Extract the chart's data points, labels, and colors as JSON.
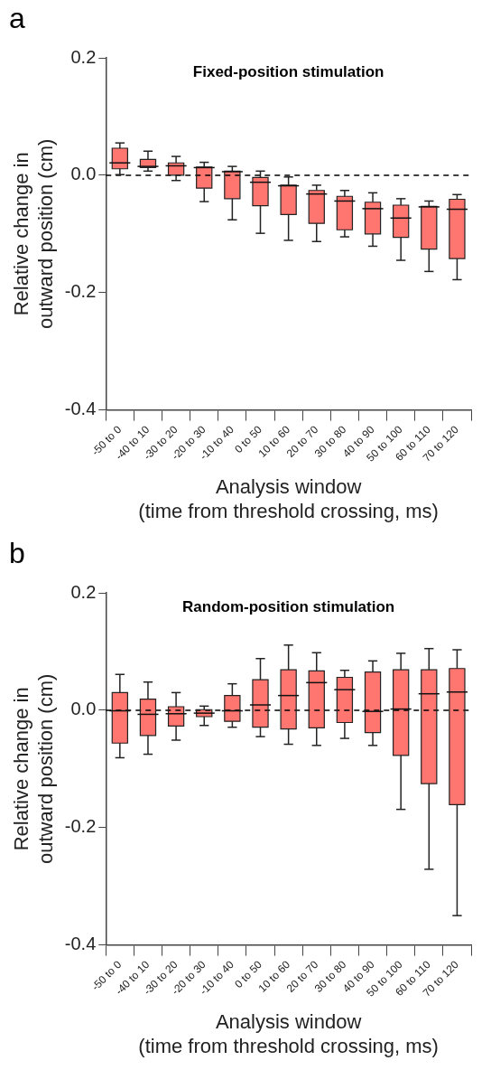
{
  "chart_data": [
    {
      "type": "box",
      "title": "Fixed-position stimulation",
      "xlabel": "Analysis window\n(time from threshold crossing, ms)",
      "ylabel": "Relative change in\noutward position (cm)",
      "annotations": [
        "a"
      ],
      "categories": [
        "-50 to 0",
        "-40 to 10",
        "-30 to 20",
        "-20 to 30",
        "-10 to 40",
        "0 to 50",
        "10 to 60",
        "20 to 70",
        "30 to 80",
        "40 to 90",
        "50 to 100",
        "60 to 110",
        "70 to 120"
      ],
      "color": "#ff7570",
      "boxes": [
        {
          "low": 0.001,
          "q1": 0.011,
          "median": 0.021,
          "q3": 0.046,
          "high": 0.055
        },
        {
          "low": 0.007,
          "q1": 0.013,
          "median": 0.015,
          "q3": 0.027,
          "high": 0.041
        },
        {
          "low": -0.009,
          "q1": 0.0,
          "median": 0.016,
          "q3": 0.021,
          "high": 0.032
        },
        {
          "low": -0.045,
          "q1": -0.022,
          "median": 0.013,
          "q3": 0.014,
          "high": 0.022
        },
        {
          "low": -0.076,
          "q1": -0.04,
          "median": 0.006,
          "q3": 0.007,
          "high": 0.015
        },
        {
          "low": -0.099,
          "q1": -0.052,
          "median": -0.012,
          "q3": -0.004,
          "high": 0.007
        },
        {
          "low": -0.111,
          "q1": -0.067,
          "median": -0.018,
          "q3": -0.017,
          "high": -0.003
        },
        {
          "low": -0.113,
          "q1": -0.082,
          "median": -0.032,
          "q3": -0.026,
          "high": -0.017
        },
        {
          "low": -0.105,
          "q1": -0.093,
          "median": -0.044,
          "q3": -0.036,
          "high": -0.026
        },
        {
          "low": -0.121,
          "q1": -0.1,
          "median": -0.057,
          "q3": -0.046,
          "high": -0.03
        },
        {
          "low": -0.145,
          "q1": -0.106,
          "median": -0.073,
          "q3": -0.051,
          "high": -0.04
        },
        {
          "low": -0.164,
          "q1": -0.126,
          "median": -0.054,
          "q3": -0.053,
          "high": -0.044
        },
        {
          "low": -0.178,
          "q1": -0.142,
          "median": -0.058,
          "q3": -0.041,
          "high": -0.033
        }
      ],
      "ylim": [
        -0.4,
        0.2
      ],
      "yticks": [
        {
          "value": -0.4,
          "label": "-0.4"
        },
        {
          "value": -0.2,
          "label": "-0.2"
        },
        {
          "value": 0,
          "label": "0.0"
        },
        {
          "value": 0.2,
          "label": "0.2"
        }
      ],
      "ref_lines": [
        {
          "axis": "y",
          "value": 0,
          "line_style": "dashed",
          "color": "#000000"
        }
      ]
    },
    {
      "type": "box",
      "title": "Random-position stimulation",
      "xlabel": "Analysis window\n(time from threshold crossing, ms)",
      "ylabel": "Relative change in\noutward position (cm)",
      "annotations": [
        "b"
      ],
      "categories": [
        "-50 to 0",
        "-40 to 10",
        "-30 to 20",
        "-20 to 30",
        "-10 to 40",
        "0 to 50",
        "10 to 60",
        "20 to 70",
        "30 to 80",
        "40 to 90",
        "50 to 100",
        "60 to 110",
        "70 to 120"
      ],
      "color": "#ff7570",
      "boxes": [
        {
          "low": -0.081,
          "q1": -0.056,
          "median": -0.001,
          "q3": 0.03,
          "high": 0.061
        },
        {
          "low": -0.075,
          "q1": -0.043,
          "median": -0.007,
          "q3": 0.019,
          "high": 0.048
        },
        {
          "low": -0.051,
          "q1": -0.027,
          "median": -0.006,
          "q3": 0.006,
          "high": 0.03
        },
        {
          "low": -0.026,
          "q1": -0.011,
          "median": -0.005,
          "q3": 0.001,
          "high": 0.007
        },
        {
          "low": -0.029,
          "q1": -0.019,
          "median": -0.001,
          "q3": 0.025,
          "high": 0.045
        },
        {
          "low": -0.045,
          "q1": -0.029,
          "median": 0.009,
          "q3": 0.052,
          "high": 0.088
        },
        {
          "low": -0.058,
          "q1": -0.032,
          "median": 0.025,
          "q3": 0.069,
          "high": 0.111
        },
        {
          "low": -0.06,
          "q1": -0.03,
          "median": 0.047,
          "q3": 0.067,
          "high": 0.098
        },
        {
          "low": -0.048,
          "q1": -0.021,
          "median": 0.035,
          "q3": 0.056,
          "high": 0.068
        },
        {
          "low": -0.06,
          "q1": -0.038,
          "median": -0.002,
          "q3": 0.065,
          "high": 0.084
        },
        {
          "low": -0.169,
          "q1": -0.077,
          "median": 0.002,
          "q3": 0.069,
          "high": 0.097
        },
        {
          "low": -0.271,
          "q1": -0.125,
          "median": 0.028,
          "q3": 0.069,
          "high": 0.105
        },
        {
          "low": -0.35,
          "q1": -0.161,
          "median": 0.031,
          "q3": 0.071,
          "high": 0.103
        }
      ],
      "ylim": [
        -0.4,
        0.2
      ],
      "yticks": [
        {
          "value": -0.4,
          "label": "-0.4"
        },
        {
          "value": -0.2,
          "label": "-0.2"
        },
        {
          "value": 0,
          "label": "0.0"
        },
        {
          "value": 0.2,
          "label": "0.2"
        }
      ],
      "ref_lines": [
        {
          "axis": "y",
          "value": 0,
          "line_style": "dashed",
          "color": "#000000"
        }
      ]
    }
  ]
}
